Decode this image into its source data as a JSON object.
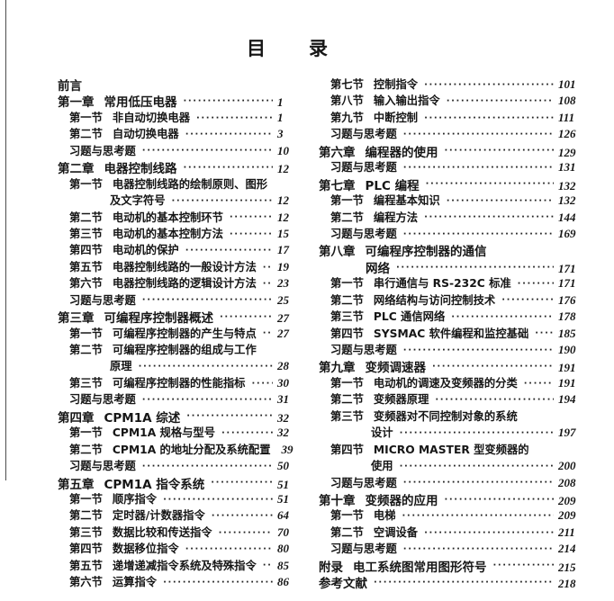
{
  "page_title": "目　　录",
  "left_column": {
    "entries": [
      {
        "type": "front",
        "label": null,
        "title": "前言",
        "cont": null,
        "page": null
      },
      {
        "type": "chapter",
        "label": "第一章",
        "title": "常用低压电器",
        "cont": null,
        "page": "1"
      },
      {
        "type": "section",
        "label": "第一节",
        "title": "非自动切换电器",
        "cont": null,
        "page": "1"
      },
      {
        "type": "section",
        "label": "第二节",
        "title": "自动切换电器",
        "cont": null,
        "page": "3"
      },
      {
        "type": "exercise",
        "label": null,
        "title": "习题与思考题",
        "cont": null,
        "page": "10"
      },
      {
        "type": "chapter",
        "label": "第二章",
        "title": "电器控制线路",
        "cont": null,
        "page": "12"
      },
      {
        "type": "section",
        "label": "第一节",
        "title": "电器控制线路的绘制原则、图形",
        "cont": "及文字符号",
        "page": "12"
      },
      {
        "type": "section",
        "label": "第二节",
        "title": "电动机的基本控制环节",
        "cont": null,
        "page": "12"
      },
      {
        "type": "section",
        "label": "第三节",
        "title": "电动机的基本控制方法",
        "cont": null,
        "page": "15"
      },
      {
        "type": "section",
        "label": "第四节",
        "title": "电动机的保护",
        "cont": null,
        "page": "17"
      },
      {
        "type": "section",
        "label": "第五节",
        "title": "电器控制线路的一般设计方法",
        "cont": null,
        "page": "19"
      },
      {
        "type": "section",
        "label": "第六节",
        "title": "电器控制线路的逻辑设计方法",
        "cont": null,
        "page": "23"
      },
      {
        "type": "exercise",
        "label": null,
        "title": "习题与思考题",
        "cont": null,
        "page": "25"
      },
      {
        "type": "chapter",
        "label": "第三章",
        "title": "可编程序控制器概述",
        "cont": null,
        "page": "27"
      },
      {
        "type": "section",
        "label": "第一节",
        "title": "可编程序控制器的产生与特点",
        "cont": null,
        "page": "27"
      },
      {
        "type": "section",
        "label": "第二节",
        "title": "可编程序控制器的组成与工作",
        "cont": "原理",
        "page": "28"
      },
      {
        "type": "section",
        "label": "第三节",
        "title": "可编程序控制器的性能指标",
        "cont": null,
        "page": "30"
      },
      {
        "type": "exercise",
        "label": null,
        "title": "习题与思考题",
        "cont": null,
        "page": "31"
      },
      {
        "type": "chapter",
        "label": "第四章",
        "title": "CPM1A 综述",
        "cont": null,
        "page": "32"
      },
      {
        "type": "section",
        "label": "第一节",
        "title": "CPM1A 规格与型号",
        "cont": null,
        "page": "32"
      },
      {
        "type": "section",
        "label": "第二节",
        "title": "CPM1A 的地址分配及系统配置",
        "cont": null,
        "page": "39"
      },
      {
        "type": "exercise",
        "label": null,
        "title": "习题与思考题",
        "cont": null,
        "page": "50"
      },
      {
        "type": "chapter",
        "label": "第五章",
        "title": "CPM1A 指令系统",
        "cont": null,
        "page": "51"
      },
      {
        "type": "section",
        "label": "第一节",
        "title": "顺序指令",
        "cont": null,
        "page": "51"
      },
      {
        "type": "section",
        "label": "第二节",
        "title": "定时器/计数器指令",
        "cont": null,
        "page": "64"
      },
      {
        "type": "section",
        "label": "第三节",
        "title": "数据比较和传送指令",
        "cont": null,
        "page": "70"
      },
      {
        "type": "section",
        "label": "第四节",
        "title": "数据移位指令",
        "cont": null,
        "page": "80"
      },
      {
        "type": "section",
        "label": "第五节",
        "title": "递增递减指令系统及特殊指令",
        "cont": null,
        "page": "85"
      },
      {
        "type": "section",
        "label": "第六节",
        "title": "运算指令",
        "cont": null,
        "page": "86"
      }
    ]
  },
  "right_column": {
    "entries": [
      {
        "type": "section",
        "label": "第七节",
        "title": "控制指令",
        "cont": null,
        "page": "101"
      },
      {
        "type": "section",
        "label": "第八节",
        "title": "输入输出指令",
        "cont": null,
        "page": "108"
      },
      {
        "type": "section",
        "label": "第九节",
        "title": "中断控制",
        "cont": null,
        "page": "111"
      },
      {
        "type": "exercise",
        "label": null,
        "title": "习题与思考题",
        "cont": null,
        "page": "126"
      },
      {
        "type": "chapter",
        "label": "第六章",
        "title": "编程器的使用",
        "cont": null,
        "page": "129"
      },
      {
        "type": "exercise",
        "label": null,
        "title": "习题与思考题",
        "cont": null,
        "page": "131"
      },
      {
        "type": "chapter",
        "label": "第七章",
        "title": "PLC 编程",
        "cont": null,
        "page": "132"
      },
      {
        "type": "section",
        "label": "第一节",
        "title": "编程基本知识",
        "cont": null,
        "page": "132"
      },
      {
        "type": "section",
        "label": "第二节",
        "title": "编程方法",
        "cont": null,
        "page": "144"
      },
      {
        "type": "exercise",
        "label": null,
        "title": "习题与思考题",
        "cont": null,
        "page": "169"
      },
      {
        "type": "chapter",
        "label": "第八章",
        "title": "可编程序控制器的通信",
        "cont": "网络",
        "page": "171"
      },
      {
        "type": "section",
        "label": "第一节",
        "title": "串行通信与 RS-232C 标准",
        "cont": null,
        "page": "171"
      },
      {
        "type": "section",
        "label": "第二节",
        "title": "网络结构与访问控制技术",
        "cont": null,
        "page": "176"
      },
      {
        "type": "section",
        "label": "第三节",
        "title": "PLC 通信网络",
        "cont": null,
        "page": "178"
      },
      {
        "type": "section",
        "label": "第四节",
        "title": "SYSMAC 软件编程和监控基础",
        "cont": null,
        "page": "185"
      },
      {
        "type": "exercise",
        "label": null,
        "title": "习题与思考题",
        "cont": null,
        "page": "190"
      },
      {
        "type": "chapter",
        "label": "第九章",
        "title": "变频调速器",
        "cont": null,
        "page": "191"
      },
      {
        "type": "section",
        "label": "第一节",
        "title": "电动机的调速及变频器的分类",
        "cont": null,
        "page": "191"
      },
      {
        "type": "section",
        "label": "第二节",
        "title": "变频器原理",
        "cont": null,
        "page": "194"
      },
      {
        "type": "section",
        "label": "第三节",
        "title": "变频器对不同控制对象的系统",
        "cont": "设计",
        "page": "197"
      },
      {
        "type": "section",
        "label": "第四节",
        "title": "MICRO MASTER 型变频器的",
        "cont": "使用",
        "page": "200"
      },
      {
        "type": "exercise",
        "label": null,
        "title": "习题与思考题",
        "cont": null,
        "page": "208"
      },
      {
        "type": "chapter",
        "label": "第十章",
        "title": "变频器的应用",
        "cont": null,
        "page": "209"
      },
      {
        "type": "section",
        "label": "第一节",
        "title": "电梯",
        "cont": null,
        "page": "209"
      },
      {
        "type": "section",
        "label": "第二节",
        "title": "空调设备",
        "cont": null,
        "page": "211"
      },
      {
        "type": "exercise",
        "label": null,
        "title": "习题与思考题",
        "cont": null,
        "page": "214"
      },
      {
        "type": "chapter",
        "label": "附录",
        "title": "电工系统图常用图形符号",
        "cont": null,
        "page": "215"
      },
      {
        "type": "chapter",
        "label": null,
        "title": "参考文献",
        "cont": null,
        "page": "218"
      }
    ]
  }
}
